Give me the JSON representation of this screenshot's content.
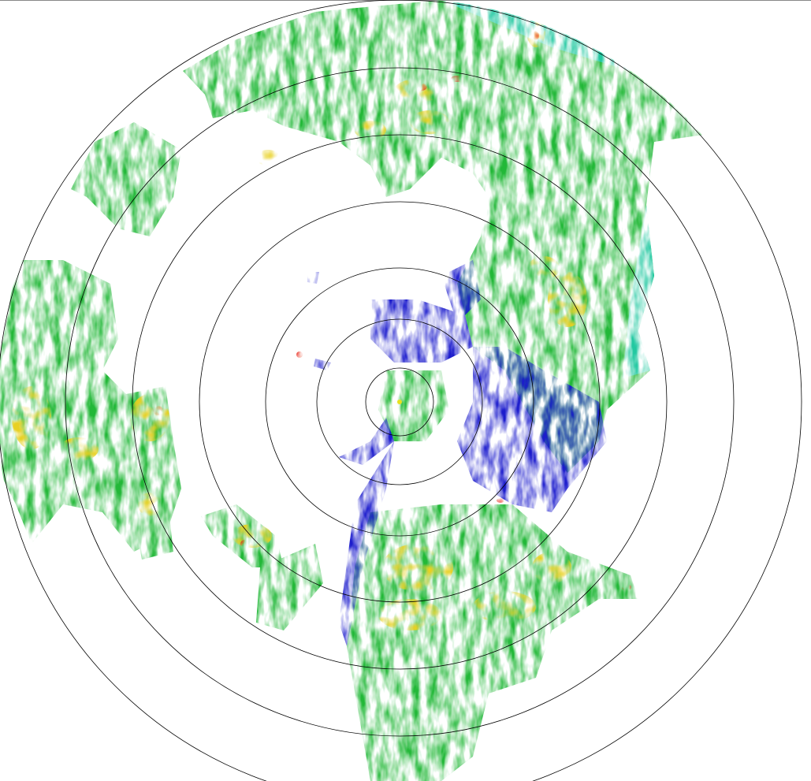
{
  "radar": {
    "range_ring_count": 7,
    "palette": {
      "weak": "#1a1acc",
      "light": "#20c8a0",
      "moderate": "#22b838",
      "heavy": "#e8d020",
      "intense": "#e82010",
      "ring": "#000000"
    }
  }
}
